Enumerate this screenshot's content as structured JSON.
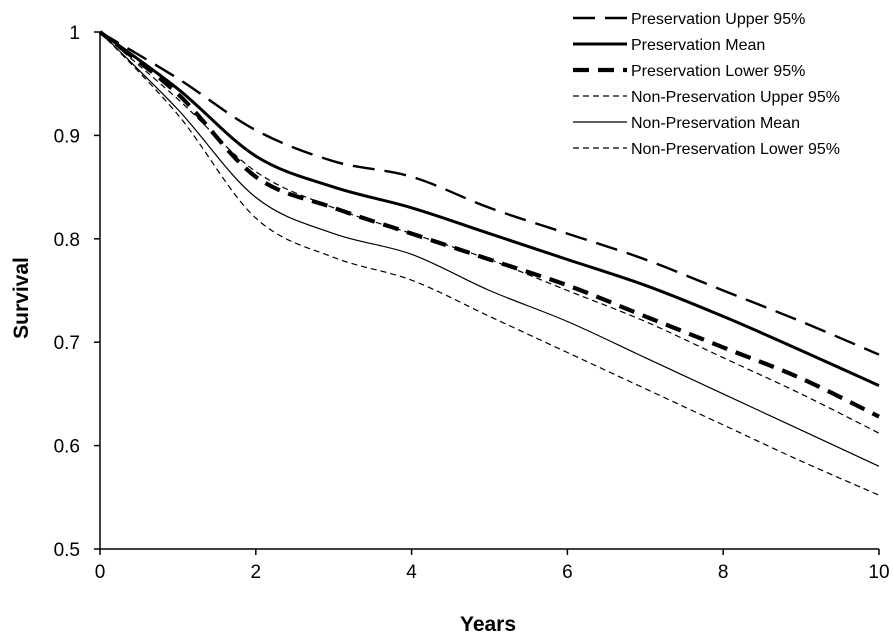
{
  "chart_data": {
    "type": "line",
    "title": "",
    "xlabel": "Years",
    "ylabel": "Survival",
    "xlim": [
      0,
      10
    ],
    "ylim": [
      0.5,
      1
    ],
    "x_ticks": [
      0,
      2,
      4,
      6,
      8,
      10
    ],
    "x_tick_labels": [
      "0",
      "2",
      "4",
      "6",
      "8",
      "10"
    ],
    "y_ticks": [
      0.5,
      0.6,
      0.7,
      0.8,
      0.9,
      1
    ],
    "y_tick_labels": [
      "0.5",
      "0.6",
      "0.7",
      "0.8",
      "0.9",
      "1"
    ],
    "grid": false,
    "legend_position": "top-right",
    "series": [
      {
        "name": "Preservation Upper 95%",
        "color": "#000000",
        "style": "long-dash",
        "x": [
          0,
          1,
          2,
          3,
          4,
          5,
          6,
          7,
          8,
          9,
          10
        ],
        "y": [
          1.0,
          0.955,
          0.905,
          0.875,
          0.86,
          0.83,
          0.805,
          0.78,
          0.75,
          0.72,
          0.688
        ]
      },
      {
        "name": "Preservation Mean",
        "color": "#000000",
        "style": "solid-thick",
        "x": [
          0,
          1,
          2,
          3,
          4,
          5,
          6,
          7,
          8,
          9,
          10
        ],
        "y": [
          1.0,
          0.945,
          0.88,
          0.85,
          0.83,
          0.805,
          0.78,
          0.755,
          0.725,
          0.692,
          0.658
        ]
      },
      {
        "name": "Preservation Lower 95%",
        "color": "#000000",
        "style": "bold-dash",
        "x": [
          0,
          1,
          2,
          3,
          4,
          5,
          6,
          7,
          8,
          9,
          10
        ],
        "y": [
          1.0,
          0.94,
          0.86,
          0.83,
          0.805,
          0.78,
          0.755,
          0.725,
          0.695,
          0.665,
          0.628
        ]
      },
      {
        "name": "Non-Preservation Upper 95%",
        "color": "#000000",
        "style": "short-dash",
        "x": [
          0,
          1,
          2,
          3,
          4,
          5,
          6,
          7,
          8,
          9,
          10
        ],
        "y": [
          1.0,
          0.935,
          0.865,
          0.83,
          0.805,
          0.78,
          0.75,
          0.72,
          0.685,
          0.65,
          0.612
        ]
      },
      {
        "name": "Non-Preservation Mean",
        "color": "#000000",
        "style": "solid-thin",
        "x": [
          0,
          1,
          2,
          3,
          4,
          5,
          6,
          7,
          8,
          9,
          10
        ],
        "y": [
          1.0,
          0.925,
          0.84,
          0.805,
          0.785,
          0.75,
          0.72,
          0.685,
          0.65,
          0.615,
          0.58
        ]
      },
      {
        "name": "Non-Preservation Lower 95%",
        "color": "#000000",
        "style": "short-dash",
        "x": [
          0,
          1,
          2,
          3,
          4,
          5,
          6,
          7,
          8,
          9,
          10
        ],
        "y": [
          1.0,
          0.92,
          0.82,
          0.782,
          0.76,
          0.725,
          0.69,
          0.655,
          0.62,
          0.585,
          0.552
        ]
      }
    ]
  }
}
